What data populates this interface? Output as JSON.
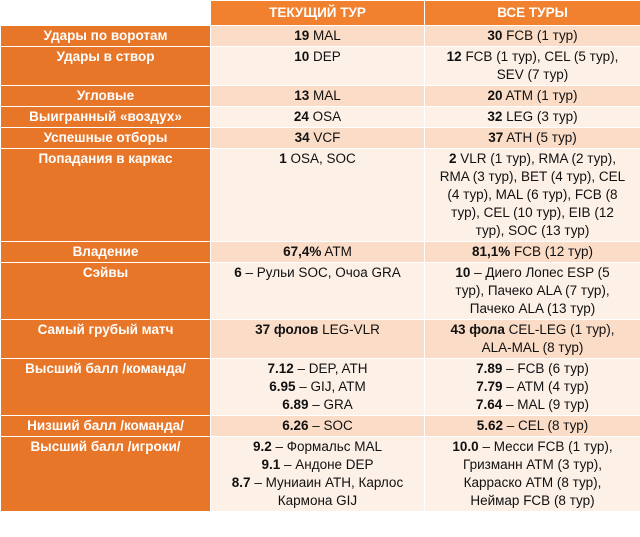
{
  "header": {
    "current": "ТЕКУЩИЙ ТУР",
    "all": "ВСЕ ТУРЫ"
  },
  "rows": [
    {
      "label": "Удары по воротам",
      "current": [
        {
          "b": "19",
          "t": " MAL"
        }
      ],
      "all": [
        {
          "b": "30",
          "t": " FCB (1 тур)"
        }
      ]
    },
    {
      "label": "Удары в створ",
      "current": [
        {
          "b": "10",
          "t": " DEP"
        }
      ],
      "all": [
        {
          "b": "12",
          "t": " FCB (1 тур), CEL (5 тур),"
        },
        {
          "b": "",
          "t": "SEV (7 тур)"
        }
      ]
    },
    {
      "label": "Угловые",
      "current": [
        {
          "b": "13",
          "t": " MAL"
        }
      ],
      "all": [
        {
          "b": "20",
          "t": " ATM (1 тур)"
        }
      ]
    },
    {
      "label": "Выигранный «воздух»",
      "current": [
        {
          "b": "24",
          "t": " OSA"
        }
      ],
      "all": [
        {
          "b": "32",
          "t": " LEG (3 тур)"
        }
      ]
    },
    {
      "label": "Успешные отборы",
      "current": [
        {
          "b": "34",
          "t": " VCF"
        }
      ],
      "all": [
        {
          "b": "37",
          "t": " ATH (5 тур)"
        }
      ]
    },
    {
      "label": "Попадания в каркас",
      "current": [
        {
          "b": "1",
          "t": " OSA, SOC"
        }
      ],
      "all": [
        {
          "b": "2",
          "t": " VLR (1 тур), RMA (2 тур),"
        },
        {
          "b": "",
          "t": "RMA (3 тур), BET (4 тур), CEL"
        },
        {
          "b": "",
          "t": "(4 тур), MAL (6 тур), FCB (8"
        },
        {
          "b": "",
          "t": "тур), CEL (10 тур), EIB (12"
        },
        {
          "b": "",
          "t": "тур), SOC (13 тур)"
        }
      ]
    },
    {
      "label": "Владение",
      "current": [
        {
          "b": "67,4%",
          "t": " ATM"
        }
      ],
      "all": [
        {
          "b": "81,1%",
          "t": " FCB (12 тур)"
        }
      ]
    },
    {
      "label": "Сэйвы",
      "current": [
        {
          "b": "6",
          "t": " – Рульи SOC, Очоа GRA"
        }
      ],
      "all": [
        {
          "b": "10",
          "t": " – Диего Лопес ESP (5"
        },
        {
          "b": "",
          "t": "тур), Пачеко ALA (7 тур),"
        },
        {
          "b": "",
          "t": "Пачеко ALA (13 тур)"
        }
      ]
    },
    {
      "label": "Самый грубый матч",
      "current": [
        {
          "b": "37 фолов",
          "t": " LEG-VLR"
        }
      ],
      "all": [
        {
          "b": "43 фола",
          "t": " CEL-LEG (1 тур),"
        },
        {
          "b": "",
          "t": "ALA-MAL (8 тур)"
        }
      ]
    },
    {
      "label": "Высший балл /команда/",
      "current": [
        {
          "b": "7.12",
          "t": " – DEP, ATH"
        },
        {
          "b": "6.95",
          "t": " – GIJ, ATM"
        },
        {
          "b": "6.89",
          "t": " – GRA"
        }
      ],
      "all": [
        {
          "b": "7.89",
          "t": " – FCB (6 тур)"
        },
        {
          "b": "7.79",
          "t": " – ATM (4 тур)"
        },
        {
          "b": "7.64",
          "t": " – MAL (9 тур)"
        }
      ]
    },
    {
      "label": "Низший балл /команда/",
      "current": [
        {
          "b": "6.26",
          "t": " – SOC"
        }
      ],
      "all": [
        {
          "b": "5.62",
          "t": " – CEL (8 тур)"
        }
      ]
    },
    {
      "label": "Высший балл /игроки/",
      "current": [
        {
          "b": "9.2",
          "t": " – Формальс MAL"
        },
        {
          "b": "9.1",
          "t": " – Андоне DEP"
        },
        {
          "b": "8.7",
          "t": " – Муниаин ATH, Карлос"
        },
        {
          "b": "",
          "t": "Кармона GIJ"
        }
      ],
      "all": [
        {
          "b": "10.0",
          "t": " – Месси FCB (1 тур),"
        },
        {
          "b": "",
          "t": "Гризманн ATM (3 тур),"
        },
        {
          "b": "",
          "t": "Карраско ATM (8 тур),"
        },
        {
          "b": "",
          "t": "Неймар FCB (8 тур)"
        }
      ]
    }
  ]
}
